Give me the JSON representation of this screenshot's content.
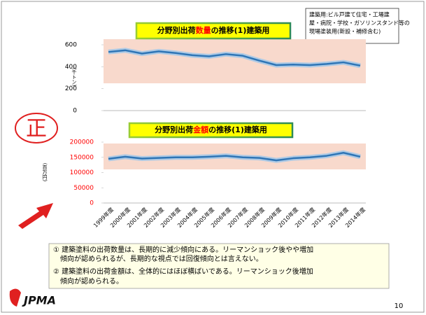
{
  "chart_data": [
    {
      "type": "line",
      "title": [
        {
          "text": "分野別出荷",
          "color": "#000000"
        },
        {
          "text": "数量",
          "color": "#ff0000"
        },
        {
          "text": "の推移(1)建築用",
          "color": "#000000"
        }
      ],
      "y_label": "(千トン)",
      "categories": [
        "1999年度",
        "2000年度",
        "2001年度",
        "2002年度",
        "2003年度",
        "2004年度",
        "2005年度",
        "2006年度",
        "2007年度",
        "2008年度",
        "2009年度",
        "2010年度",
        "2011年度",
        "2012年度",
        "2013年度",
        "2014年度"
      ],
      "values": [
        535,
        550,
        520,
        540,
        525,
        505,
        495,
        515,
        500,
        455,
        415,
        420,
        415,
        425,
        440,
        410
      ],
      "color": "#2e75b6",
      "tick_color": "#000000",
      "ylim": [
        0,
        600
      ],
      "yticks": [
        0,
        200,
        400,
        600
      ],
      "grid": false
    },
    {
      "type": "line",
      "title": [
        {
          "text": "分野別出荷",
          "color": "#000000"
        },
        {
          "text": "金額",
          "color": "#ff0000"
        },
        {
          "text": "の推移(1)建築用",
          "color": "#000000"
        }
      ],
      "y_label": "(百万円)",
      "categories": [
        "1999年度",
        "2000年度",
        "2001年度",
        "2002年度",
        "2003年度",
        "2004年度",
        "2005年度",
        "2006年度",
        "2007年度",
        "2008年度",
        "2009年度",
        "2010年度",
        "2011年度",
        "2012年度",
        "2013年度",
        "2014年度"
      ],
      "values": [
        145000,
        152000,
        146000,
        148000,
        150000,
        150000,
        152000,
        155000,
        150000,
        148000,
        140000,
        147000,
        150000,
        155000,
        165000,
        152000
      ],
      "color": "#2e75b6",
      "tick_color": "#ff0000",
      "ylim": [
        0,
        200000
      ],
      "yticks": [
        0,
        50000,
        100000,
        150000,
        200000
      ],
      "grid": false
    }
  ],
  "note_box": [
    "建築用:ビル戸建て住宅・工場建",
    "屋・病院・学校・ガソリンスタンド等の",
    "現場塗装用(新設・補修含む)"
  ],
  "stamp": "正",
  "summary": [
    "① 建築塗料の出荷数量は、長期的に減少傾向にある。リーマンショック後やや増加",
    "　傾向が認められるが、長期的な視点では回復傾向とは言えない。",
    "② 建築塗料の出荷金額は、全体的にはほぼ横ばいである。リーマンショック後増加",
    "　傾向が認められる。"
  ],
  "logo": "JPMA",
  "page_number": "10"
}
